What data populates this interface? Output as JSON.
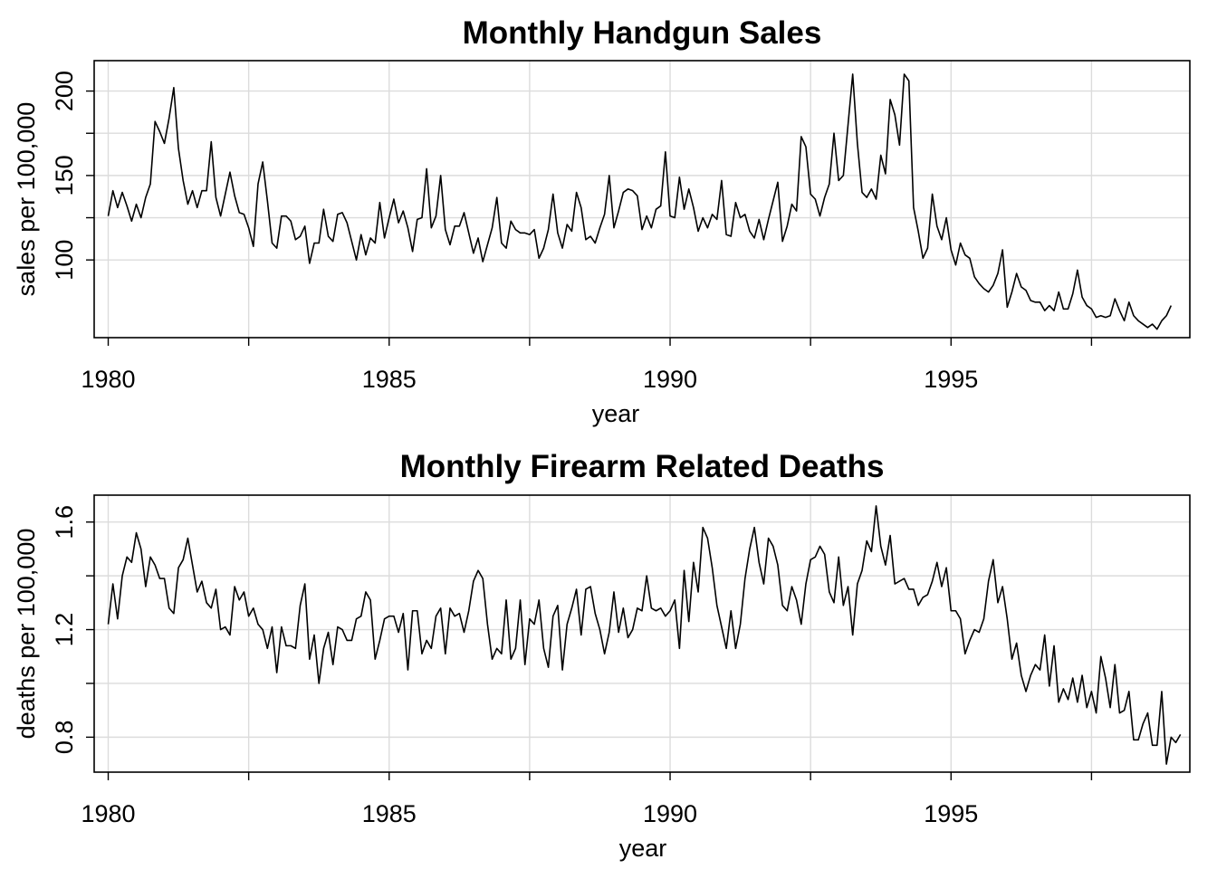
{
  "chart_data": [
    {
      "type": "line",
      "title": "Monthly Handgun Sales",
      "xlabel": "year",
      "ylabel": "sales per 100,000",
      "xlim": [
        1979.75,
        1999.25
      ],
      "ylim": [
        54,
        218
      ],
      "x_ticks": [
        1980,
        1985,
        1990,
        1995
      ],
      "x_minor_ticks": [
        1982.5,
        1987.5,
        1992.5,
        1997.5
      ],
      "y_ticks": [
        100,
        150,
        200
      ],
      "y_minor_ticks": [
        125,
        175
      ],
      "grid": true,
      "x_start": 1980,
      "x_step": 0.0833333,
      "values": [
        126,
        141,
        131,
        140,
        132,
        123,
        133,
        125,
        137,
        145,
        182,
        176,
        169,
        184,
        202,
        166,
        147,
        133,
        141,
        131,
        141,
        141,
        170,
        137,
        126,
        139,
        152,
        138,
        128,
        127,
        119,
        108,
        145,
        158,
        135,
        110,
        107,
        126,
        126,
        123,
        112,
        114,
        120,
        98,
        110,
        110,
        130,
        114,
        111,
        127,
        128,
        122,
        111,
        100,
        115,
        103,
        113,
        110,
        134,
        113,
        125,
        136,
        122,
        129,
        119,
        105,
        124,
        125,
        154,
        119,
        126,
        150,
        118,
        109,
        120,
        120,
        128,
        116,
        104,
        113,
        99,
        109,
        119,
        137,
        110,
        107,
        123,
        118,
        116,
        116,
        115,
        118,
        101,
        107,
        118,
        139,
        116,
        107,
        121,
        117,
        140,
        131,
        112,
        114,
        110,
        119,
        127,
        150,
        119,
        129,
        140,
        142,
        141,
        138,
        118,
        126,
        119,
        130,
        132,
        164,
        126,
        125,
        149,
        130,
        142,
        131,
        117,
        125,
        119,
        127,
        124,
        147,
        115,
        114,
        134,
        125,
        127,
        117,
        113,
        124,
        112,
        124,
        135,
        146,
        111,
        120,
        133,
        129,
        173,
        167,
        139,
        136,
        126,
        137,
        145,
        175,
        147,
        150,
        180,
        210,
        169,
        140,
        137,
        142,
        136,
        162,
        151,
        195,
        186,
        168,
        210,
        206,
        131,
        117,
        101,
        107,
        139,
        120,
        112,
        125,
        106,
        97,
        110,
        103,
        101,
        90,
        86,
        83,
        81,
        85,
        92,
        106,
        72,
        81,
        92,
        84,
        82,
        76,
        75,
        75,
        70,
        73,
        70,
        81,
        71,
        71,
        80,
        94,
        78,
        73,
        71,
        66,
        67,
        66,
        67,
        77,
        70,
        64,
        75,
        67,
        64,
        62,
        60,
        62,
        59,
        64,
        67,
        73
      ]
    },
    {
      "type": "line",
      "title": "Monthly Firearm Related Deaths",
      "xlabel": "year",
      "ylabel": "deaths per 100,000",
      "xlim": [
        1979.75,
        1999.25
      ],
      "ylim": [
        0.67,
        1.7
      ],
      "x_ticks": [
        1980,
        1985,
        1990,
        1995
      ],
      "x_minor_ticks": [
        1982.5,
        1987.5,
        1992.5,
        1997.5
      ],
      "y_ticks": [
        0.8,
        1.2,
        1.6
      ],
      "y_minor_ticks": [
        1.0,
        1.4
      ],
      "grid": true,
      "x_start": 1980,
      "x_step": 0.0833333,
      "values": [
        1.22,
        1.37,
        1.24,
        1.4,
        1.47,
        1.45,
        1.56,
        1.5,
        1.36,
        1.47,
        1.44,
        1.39,
        1.39,
        1.28,
        1.26,
        1.43,
        1.46,
        1.54,
        1.44,
        1.34,
        1.38,
        1.3,
        1.28,
        1.35,
        1.2,
        1.21,
        1.18,
        1.36,
        1.31,
        1.34,
        1.25,
        1.28,
        1.22,
        1.2,
        1.13,
        1.21,
        1.04,
        1.21,
        1.14,
        1.14,
        1.13,
        1.29,
        1.37,
        1.09,
        1.18,
        1.0,
        1.13,
        1.19,
        1.07,
        1.21,
        1.2,
        1.16,
        1.16,
        1.24,
        1.25,
        1.34,
        1.31,
        1.09,
        1.16,
        1.24,
        1.25,
        1.25,
        1.19,
        1.26,
        1.05,
        1.27,
        1.27,
        1.11,
        1.16,
        1.13,
        1.25,
        1.28,
        1.11,
        1.28,
        1.25,
        1.26,
        1.19,
        1.27,
        1.38,
        1.42,
        1.39,
        1.22,
        1.09,
        1.13,
        1.11,
        1.31,
        1.09,
        1.13,
        1.31,
        1.07,
        1.24,
        1.22,
        1.31,
        1.13,
        1.06,
        1.25,
        1.29,
        1.05,
        1.22,
        1.28,
        1.35,
        1.18,
        1.35,
        1.36,
        1.26,
        1.2,
        1.11,
        1.19,
        1.34,
        1.19,
        1.28,
        1.17,
        1.2,
        1.28,
        1.27,
        1.4,
        1.28,
        1.27,
        1.28,
        1.25,
        1.27,
        1.31,
        1.13,
        1.42,
        1.23,
        1.45,
        1.34,
        1.58,
        1.54,
        1.43,
        1.29,
        1.21,
        1.13,
        1.27,
        1.13,
        1.22,
        1.39,
        1.5,
        1.58,
        1.45,
        1.37,
        1.54,
        1.51,
        1.44,
        1.29,
        1.27,
        1.36,
        1.31,
        1.22,
        1.37,
        1.46,
        1.47,
        1.51,
        1.48,
        1.34,
        1.3,
        1.47,
        1.29,
        1.36,
        1.18,
        1.37,
        1.42,
        1.53,
        1.49,
        1.66,
        1.51,
        1.44,
        1.55,
        1.37,
        1.38,
        1.39,
        1.35,
        1.35,
        1.29,
        1.32,
        1.33,
        1.38,
        1.45,
        1.36,
        1.43,
        1.27,
        1.27,
        1.24,
        1.11,
        1.16,
        1.2,
        1.19,
        1.24,
        1.38,
        1.46,
        1.3,
        1.36,
        1.24,
        1.09,
        1.15,
        1.03,
        0.97,
        1.03,
        1.07,
        1.05,
        1.18,
        0.99,
        1.14,
        0.93,
        0.98,
        0.94,
        1.02,
        0.93,
        1.03,
        0.91,
        0.97,
        0.89,
        1.1,
        1.02,
        0.91,
        1.07,
        0.89,
        0.9,
        0.97,
        0.79,
        0.79,
        0.85,
        0.89,
        0.77,
        0.77,
        0.97,
        0.7,
        0.8,
        0.78,
        0.81
      ]
    }
  ]
}
